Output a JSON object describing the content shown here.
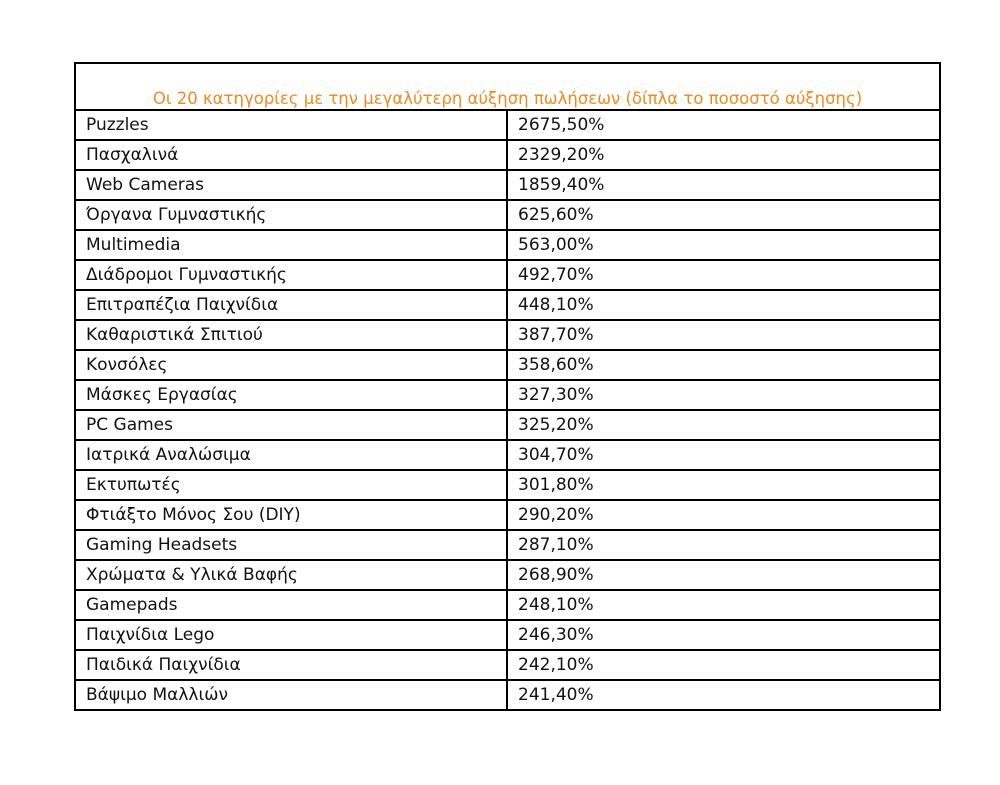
{
  "table": {
    "title": "Οι 20 κατηγορίες με την μεγαλύτερη αύξηση πωλήσεων (δίπλα το ποσοστό αύξησης)",
    "rows": [
      [
        "Puzzles",
        "2675,50%"
      ],
      [
        "Πασχαλινά",
        "2329,20%"
      ],
      [
        "Web Cameras",
        "1859,40%"
      ],
      [
        "Όργανα Γυμναστικής",
        "625,60%"
      ],
      [
        "Multimedia",
        "563,00%"
      ],
      [
        "Διάδρομοι Γυμναστικής",
        "492,70%"
      ],
      [
        "Επιτραπέζια Παιχνίδια",
        "448,10%"
      ],
      [
        "Καθαριστικά Σπιτιού",
        "387,70%"
      ],
      [
        "Κονσόλες",
        "358,60%"
      ],
      [
        "Μάσκες Εργασίας",
        "327,30%"
      ],
      [
        "PC Games",
        "325,20%"
      ],
      [
        "Ιατρικά Αναλώσιμα",
        "304,70%"
      ],
      [
        "Εκτυπωτές",
        "301,80%"
      ],
      [
        "Φτιάξτο Μόνος Σου (DIY)",
        "290,20%"
      ],
      [
        "Gaming Headsets",
        "287,10%"
      ],
      [
        "Χρώματα & Υλικά Βαφής",
        "268,90%"
      ],
      [
        "Gamepads",
        "248,10%"
      ],
      [
        "Παιχνίδια Lego",
        "246,30%"
      ],
      [
        "Παιδικά Παιχνίδια",
        "242,10%"
      ],
      [
        "Βάψιμο Μαλλιών",
        "241,40%"
      ]
    ]
  }
}
